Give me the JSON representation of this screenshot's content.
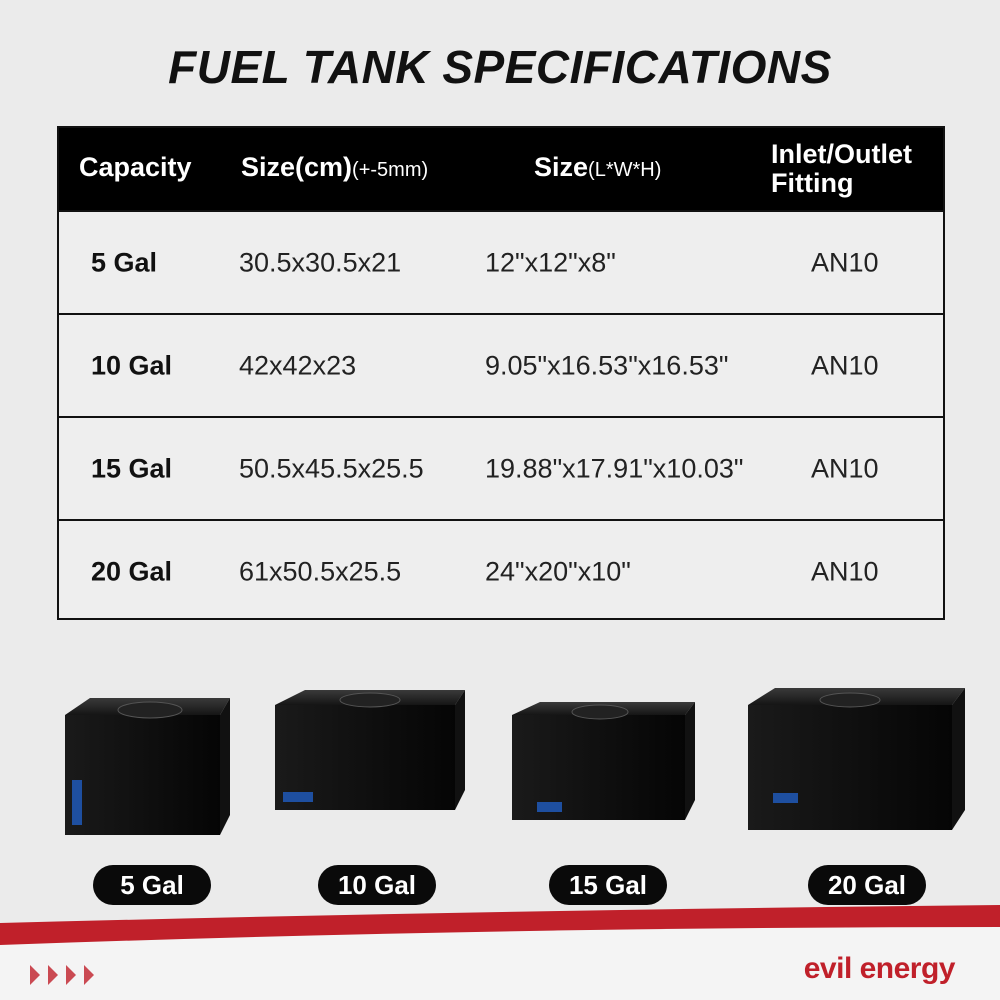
{
  "title": "FUEL TANK SPECIFICATIONS",
  "table": {
    "header": [
      {
        "main": "Capacity"
      },
      {
        "main": "Size(cm)",
        "sub": "(+-5mm)"
      },
      {
        "main": "Size",
        "sub": "(L*W*H)"
      },
      {
        "main": "Inlet/Outlet Fitting"
      }
    ],
    "rows": [
      [
        "5 Gal",
        "30.5x30.5x21",
        "12\"x12\"x8\"",
        "AN10"
      ],
      [
        "10 Gal",
        "42x42x23",
        "9.05\"x16.53\"x16.53\"",
        "AN10"
      ],
      [
        "15 Gal",
        "50.5x45.5x25.5",
        "19.88\"x17.91\"x10.03\"",
        "AN10"
      ],
      [
        "20 Gal",
        "61x50.5x25.5",
        "24\"x20\"x10\"",
        "AN10"
      ]
    ]
  },
  "tanks": [
    "5 Gal",
    "10 Gal",
    "15 Gal",
    "20 Gal"
  ],
  "brand": "evil energy"
}
